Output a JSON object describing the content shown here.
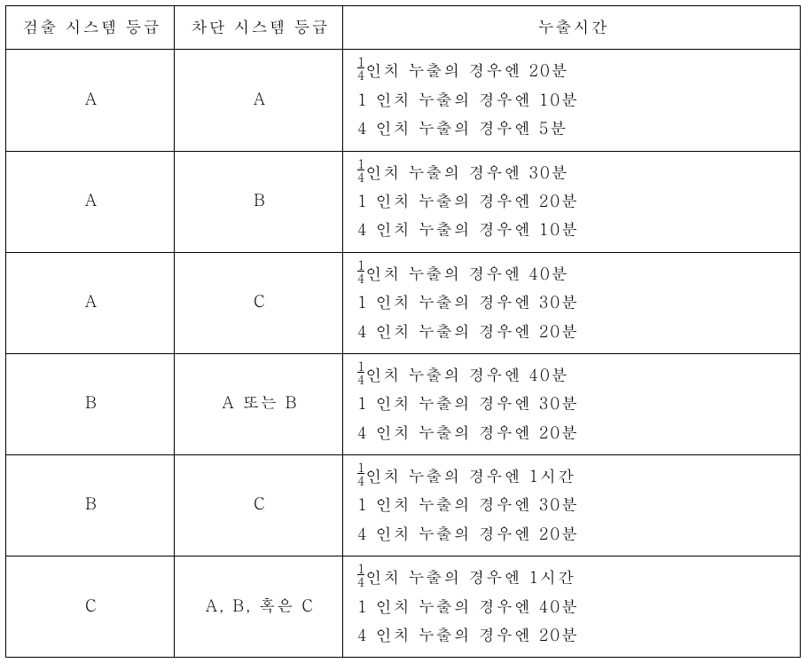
{
  "table": {
    "headers": [
      "검출 시스템 등급",
      "차단 시스템 등급",
      "누출시간"
    ],
    "rows": [
      {
        "detect": "A",
        "block": "A",
        "lines": [
          {
            "frac_num": "1",
            "frac_den": "4",
            "text": "인치 누출의 경우엔 20분"
          },
          {
            "prefix": "1 ",
            "text": "인치 누출의 경우엔 10분"
          },
          {
            "prefix": "4 ",
            "text": "인치 누출의 경우엔 5분"
          }
        ]
      },
      {
        "detect": "A",
        "block": "B",
        "lines": [
          {
            "frac_num": "1",
            "frac_den": "4",
            "text": "인치 누출의 경우엔 30분"
          },
          {
            "prefix": "1 ",
            "text": "인치 누출의 경우엔 20분"
          },
          {
            "prefix": "4 ",
            "text": "인치 누출의 경우엔 10분"
          }
        ]
      },
      {
        "detect": "A",
        "block": "C",
        "lines": [
          {
            "frac_num": "1",
            "frac_den": "4",
            "text": "인치 누출의 경우엔 40분"
          },
          {
            "prefix": "1 ",
            "text": "인치 누출의 경우엔 30분"
          },
          {
            "prefix": "4 ",
            "text": "인치 누출의 경우엔 20분"
          }
        ]
      },
      {
        "detect": "B",
        "block": "A 또는 B",
        "lines": [
          {
            "frac_num": "1",
            "frac_den": "4",
            "text": "인치 누출의 경우엔 40분"
          },
          {
            "prefix": "1 ",
            "text": "인치 누출의 경우엔 30분"
          },
          {
            "prefix": "4 ",
            "text": "인치 누출의 경우엔 20분"
          }
        ]
      },
      {
        "detect": "B",
        "block": "C",
        "lines": [
          {
            "frac_num": "1",
            "frac_den": "4",
            "text": "인치 누출의 경우엔 1시간"
          },
          {
            "prefix": "1 ",
            "text": "인치 누출의 경우엔 30분"
          },
          {
            "prefix": "4 ",
            "text": "인치 누출의 경우엔 20분"
          }
        ]
      },
      {
        "detect": "C",
        "block": "A, B, 혹은 C",
        "lines": [
          {
            "frac_num": "1",
            "frac_den": "4",
            "text": "인치 누출의 경우엔 1시간"
          },
          {
            "prefix": "1 ",
            "text": "인치 누출의 경우엔 40분"
          },
          {
            "prefix": "4 ",
            "text": "인치 누출의 경우엔 20분"
          }
        ]
      }
    ],
    "colors": {
      "border": "#000000",
      "background": "#ffffff",
      "text": "#000000"
    },
    "fontsize_pt": 14
  }
}
